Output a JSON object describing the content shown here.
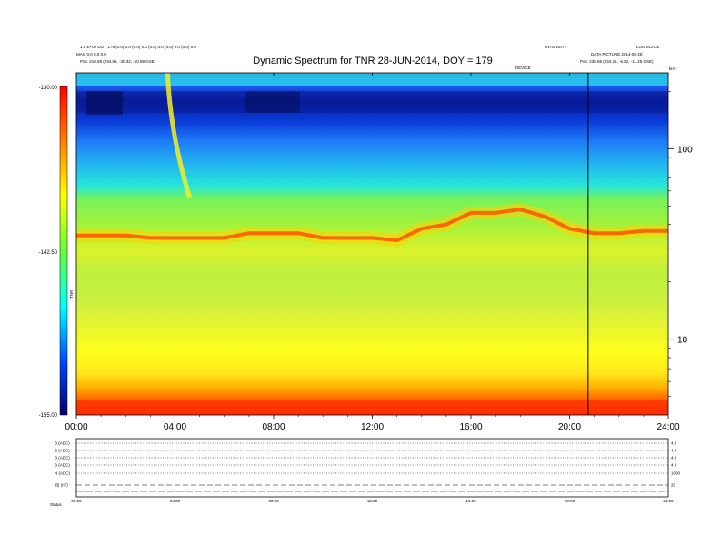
{
  "header": {
    "title": "Dynamic Spectrum for TNR 28-JUN-2014, DOY = 179",
    "left_line1": "1.0 E+00 DOY 179 (0.0) 0.0 (0.0) 0.0 (0.0) 0.0 (0.0) 0.0 (0.0) 0.0",
    "left_line2": "MAG 0.0 0.0 0.0",
    "left_line3": "Pos: 210.89 (234.85, -30.32, -10.89 GSE)",
    "center_small": "DEVICE",
    "right_line1": "INTENSITY",
    "right_line2": "LOG SCALE",
    "right_line3": "DATA PICTURE 2014-06-28",
    "right_line4": "Pos: 238.65 (234.25, -6.82, -11.25 GSE)",
    "right_corner": "kHz"
  },
  "colorbar": {
    "top_label": "-130.00",
    "mid_label": "-142.50",
    "bottom_label": "-155.00",
    "axis_label": "TNR"
  },
  "chart_data": {
    "type": "heatmap",
    "title": "Dynamic Spectrum for TNR 28-JUN-2014, DOY = 179",
    "x_tick_labels": [
      "00:00",
      "04:00",
      "08:00",
      "12:00",
      "16:00",
      "20:00",
      "24:00"
    ],
    "x_ticks_hours": [
      0,
      4,
      8,
      12,
      16,
      20,
      24
    ],
    "x_range_hours": [
      0,
      24
    ],
    "y_scale": "log",
    "y_tick_labels": [
      "10",
      "100"
    ],
    "y_ticks": [
      10,
      100
    ],
    "y_range": [
      4,
      250
    ],
    "color_range": [
      -155.0,
      -130.0
    ],
    "color_scale_labels": [
      "-130.00",
      "-142.50",
      "-155.00"
    ],
    "marker_line_hour": 20.75,
    "plasma_line_profile": {
      "hours": [
        0,
        1,
        2,
        3,
        4,
        5,
        6,
        7,
        8,
        9,
        10,
        11,
        12,
        13,
        14,
        15,
        16,
        17,
        18,
        19,
        20,
        21,
        22,
        23,
        24
      ],
      "freq_khz": [
        35,
        35,
        35,
        34,
        34,
        34,
        34,
        36,
        36,
        36,
        34,
        34,
        34,
        33,
        38,
        40,
        46,
        46,
        48,
        44,
        38,
        36,
        36,
        37,
        37
      ]
    },
    "type_iii_burst": {
      "start_hour": 3.7,
      "end_hour": 4.6,
      "top_khz": 250,
      "bottom_khz": 55
    },
    "grid": false,
    "legend": "none"
  },
  "lower_panel": {
    "row_labels_left": [
      "B (ADC)",
      "B (ADC)",
      "B (ADC)",
      "B (ADC)",
      "N (ADC)",
      "|B| (nT)"
    ],
    "row_labels_right": [
      "4.0",
      "4.0",
      "4.0",
      "4.0",
      "1000",
      "20"
    ],
    "x_tick_labels": [
      "00:00",
      "04:00",
      "08:00",
      "12:00",
      "16:00",
      "20:00",
      "24:00"
    ],
    "status_label": "Status"
  },
  "colors": {
    "frame": "#000000",
    "background": "#ffffff",
    "marker_line": "#000000"
  }
}
